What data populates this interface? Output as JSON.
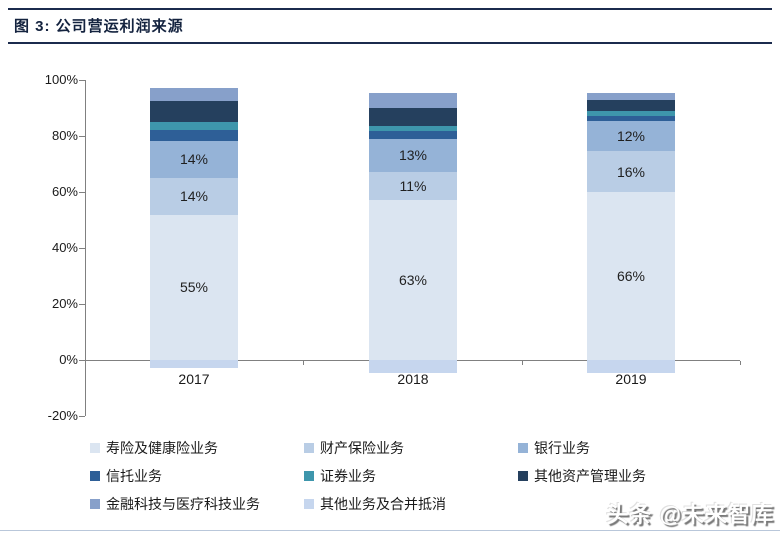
{
  "figure": {
    "title": "图 3: 公司营运利润来源"
  },
  "watermark": "头条 @未来智库",
  "chart_data": {
    "type": "bar",
    "subtype": "stacked-100-percent",
    "title": "公司营运利润来源",
    "categories": [
      "2017",
      "2018",
      "2019"
    ],
    "series": [
      {
        "name": "寿险及健康险业务",
        "color": "#dbe5f1",
        "values": [
          55,
          63,
          66
        ],
        "data_labels": [
          "55%",
          "63%",
          "66%"
        ]
      },
      {
        "name": "财产保险业务",
        "color": "#b9cde5",
        "values": [
          14,
          11,
          16
        ],
        "data_labels": [
          "14%",
          "11%",
          "16%"
        ]
      },
      {
        "name": "银行业务",
        "color": "#95b3d7",
        "values": [
          14,
          13,
          12
        ],
        "data_labels": [
          "14%",
          "13%",
          "12%"
        ]
      },
      {
        "name": "信托业务",
        "color": "#2e5f97",
        "values": [
          4,
          3,
          2
        ],
        "data_labels": null
      },
      {
        "name": "证券业务",
        "color": "#3e96ac",
        "values": [
          3,
          2,
          2
        ],
        "data_labels": null
      },
      {
        "name": "其他资产管理业务",
        "color": "#25405e",
        "values": [
          8,
          7,
          4
        ],
        "data_labels": null
      },
      {
        "name": "金融科技与医疗科技业务",
        "color": "#87a0ca",
        "values": [
          5,
          6,
          3
        ],
        "data_labels": null
      },
      {
        "name": "其他业务及合并抵消",
        "color": "#c6d6ee",
        "values": [
          -3,
          -5,
          -5
        ],
        "data_labels": null
      }
    ],
    "xlabel": "",
    "ylabel": "",
    "y_axis": {
      "min": -20,
      "max": 100,
      "step": 20,
      "tick_labels": [
        "100%",
        "80%",
        "60%",
        "40%",
        "20%",
        "0%",
        "-20%"
      ]
    },
    "grid": false,
    "legend_position": "bottom"
  }
}
